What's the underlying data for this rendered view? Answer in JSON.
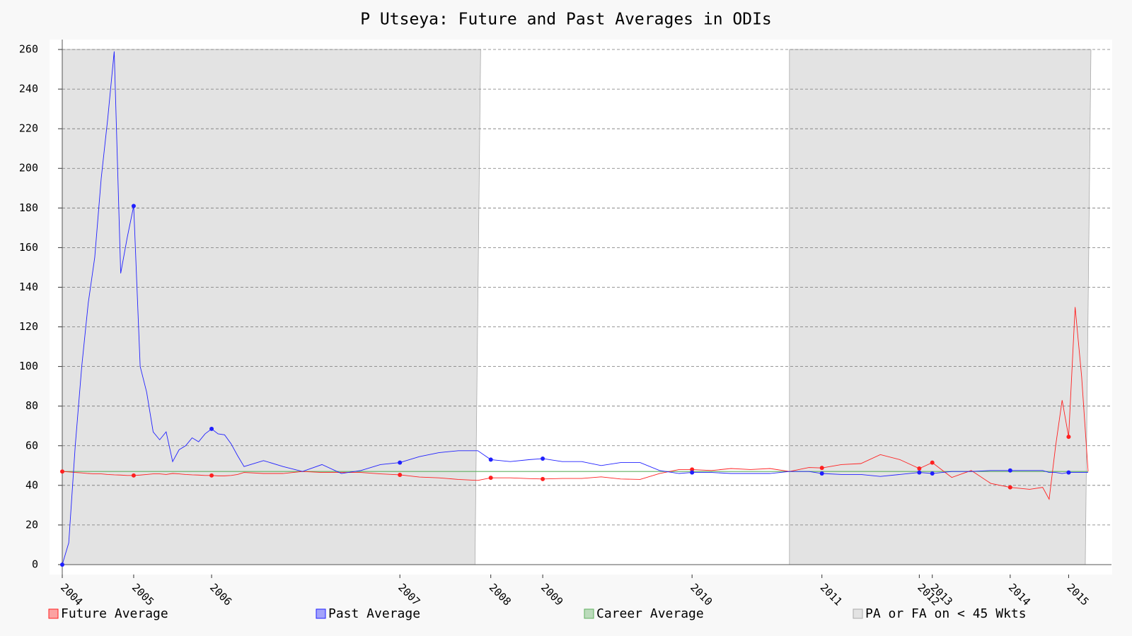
{
  "chart_data": {
    "type": "line",
    "title": "P Utseya: Future and Past Averages in ODIs",
    "x": [
      0,
      1,
      2,
      3,
      4,
      5,
      6,
      7,
      8,
      9,
      10,
      11,
      12,
      13,
      14,
      15,
      16,
      17,
      18,
      19,
      20,
      21,
      22,
      23,
      24,
      25,
      26,
      27,
      28,
      31,
      34,
      37,
      40,
      43,
      46,
      49,
      52,
      55,
      58,
      61,
      64,
      66,
      69,
      72,
      74,
      77,
      80,
      83,
      86,
      89,
      92,
      95,
      97,
      100,
      103,
      106,
      109,
      112,
      115,
      117,
      120,
      123,
      126,
      129,
      132,
      134,
      137,
      140,
      143,
      146,
      149,
      151,
      152,
      153,
      154,
      155,
      156,
      157,
      158
    ],
    "series": [
      {
        "name": "Future Average",
        "color": "#ff2020",
        "values": [
          47,
          46.8,
          46.5,
          46.3,
          46,
          45.8,
          45.8,
          45.5,
          45.3,
          45.2,
          45,
          45,
          45.2,
          45.5,
          45.8,
          45.8,
          45.5,
          46,
          45.8,
          45.5,
          45.3,
          45.2,
          45,
          45,
          44.8,
          44.8,
          45,
          45.5,
          46.5,
          46,
          46,
          47,
          46.5,
          46.5,
          46.5,
          45.8,
          45.3,
          44.2,
          43.8,
          43,
          42.5,
          43.8,
          43.8,
          43.4,
          43.2,
          43.5,
          43.5,
          44.3,
          43.2,
          43,
          46,
          48,
          48,
          47.5,
          48.5,
          48,
          48.5,
          47,
          49,
          48.8,
          50.5,
          51,
          55.5,
          53,
          48.5,
          51.5,
          44,
          47.5,
          41,
          39,
          38,
          39,
          33,
          60,
          83,
          64.5,
          130,
          95,
          47
        ]
      },
      {
        "name": "Past Average",
        "color": "#2020ff",
        "values": [
          0,
          11,
          60,
          100,
          132,
          155,
          195,
          225,
          259,
          147,
          165,
          181,
          100,
          87,
          67,
          63,
          67,
          52,
          58,
          60,
          64,
          62,
          66,
          68.5,
          66,
          65.5,
          61,
          55,
          49.5,
          52.5,
          49.5,
          47,
          50.5,
          46,
          47.5,
          50.5,
          51.5,
          54.5,
          56.5,
          57.5,
          57.5,
          53,
          52,
          53,
          53.5,
          52,
          52,
          50,
          51.5,
          51.5,
          47.5,
          46,
          46.5,
          46.5,
          46,
          46,
          46,
          47,
          47,
          46,
          45.5,
          45.5,
          44.5,
          45.5,
          46.5,
          46,
          47,
          47,
          47.5,
          47.5,
          47.5,
          47.5,
          46.5,
          46.5,
          46,
          46.5,
          46.5,
          46.5,
          46.5
        ]
      },
      {
        "name": "Career Average",
        "color": "#60b060",
        "value": 47
      },
      {
        "name": "PA or FA on < 45 Wkts",
        "color": "#e3e3e3",
        "ranges": [
          [
            0,
            64
          ],
          [
            112,
            158
          ]
        ],
        "level": 260
      }
    ],
    "xlim": [
      0,
      161.6
    ],
    "ylim": [
      -5,
      265
    ],
    "xticks": [
      {
        "value": 0,
        "label": "2004"
      },
      {
        "value": 11,
        "label": "2005"
      },
      {
        "value": 23,
        "label": "2006"
      },
      {
        "value": 52,
        "label": "2007"
      },
      {
        "value": 66,
        "label": "2008"
      },
      {
        "value": 74,
        "label": "2009"
      },
      {
        "value": 97,
        "label": "2010"
      },
      {
        "value": 117,
        "label": "2011"
      },
      {
        "value": 132,
        "label": "2012"
      },
      {
        "value": 134,
        "label": "2013"
      },
      {
        "value": 146,
        "label": "2014"
      },
      {
        "value": 155,
        "label": "2015"
      }
    ],
    "yticks": [
      0,
      20,
      40,
      60,
      80,
      100,
      120,
      140,
      160,
      180,
      200,
      220,
      240,
      260
    ],
    "grid": true
  }
}
